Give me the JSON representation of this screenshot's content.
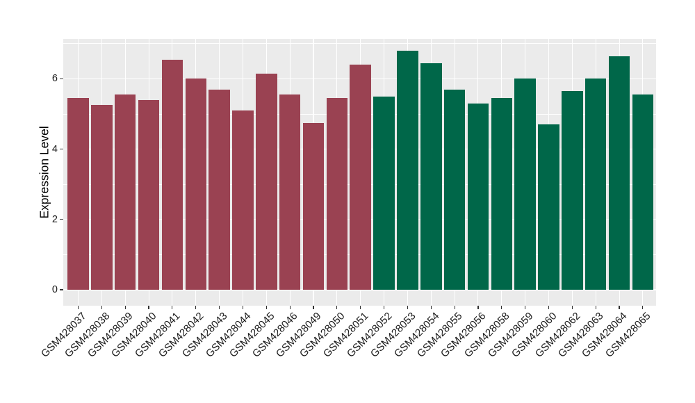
{
  "chart_data": {
    "type": "bar",
    "title": "",
    "ylabel": "Expression Level",
    "xlabel": "",
    "ylim": [
      0,
      7.1
    ],
    "yticks": [
      0,
      2,
      4,
      6
    ],
    "yticks_minor": [
      1,
      3,
      5,
      7
    ],
    "grid": "on",
    "legend_position": "none",
    "panel_bg": "#EBEBEB",
    "grid_color": "#FFFFFF",
    "axis_text_color": "#1a1a1a",
    "bar_colors": {
      "maroon": "#9A4252",
      "green": "#006749"
    },
    "categories": [
      "GSM428037",
      "GSM428038",
      "GSM428039",
      "GSM428040",
      "GSM428041",
      "GSM428042",
      "GSM428043",
      "GSM428044",
      "GSM428045",
      "GSM428046",
      "GSM428049",
      "GSM428050",
      "GSM428051",
      "GSM428052",
      "GSM428053",
      "GSM428054",
      "GSM428055",
      "GSM428056",
      "GSM428058",
      "GSM428059",
      "GSM428060",
      "GSM428062",
      "GSM428063",
      "GSM428064",
      "GSM428065"
    ],
    "bars": [
      {
        "label": "GSM428037",
        "value": 5.45,
        "color": "maroon"
      },
      {
        "label": "GSM428038",
        "value": 5.25,
        "color": "maroon"
      },
      {
        "label": "GSM428039",
        "value": 5.55,
        "color": "maroon"
      },
      {
        "label": "GSM428040",
        "value": 5.4,
        "color": "maroon"
      },
      {
        "label": "GSM428041",
        "value": 6.55,
        "color": "maroon"
      },
      {
        "label": "GSM428042",
        "value": 6.0,
        "color": "maroon"
      },
      {
        "label": "GSM428043",
        "value": 5.7,
        "color": "maroon"
      },
      {
        "label": "GSM428044",
        "value": 5.1,
        "color": "maroon"
      },
      {
        "label": "GSM428045",
        "value": 6.15,
        "color": "maroon"
      },
      {
        "label": "GSM428046",
        "value": 5.55,
        "color": "maroon"
      },
      {
        "label": "GSM428049",
        "value": 4.75,
        "color": "maroon"
      },
      {
        "label": "GSM428050",
        "value": 5.45,
        "color": "maroon"
      },
      {
        "label": "GSM428051",
        "value": 6.4,
        "color": "maroon"
      },
      {
        "label": "GSM428052",
        "value": 5.5,
        "color": "green"
      },
      {
        "label": "GSM428053",
        "value": 6.8,
        "color": "green"
      },
      {
        "label": "GSM428054",
        "value": 6.45,
        "color": "green"
      },
      {
        "label": "GSM428055",
        "value": 5.7,
        "color": "green"
      },
      {
        "label": "GSM428056",
        "value": 5.3,
        "color": "green"
      },
      {
        "label": "GSM428058",
        "value": 5.45,
        "color": "green"
      },
      {
        "label": "GSM428059",
        "value": 6.0,
        "color": "green"
      },
      {
        "label": "GSM428060",
        "value": 4.7,
        "color": "green"
      },
      {
        "label": "GSM428062",
        "value": 5.65,
        "color": "green"
      },
      {
        "label": "GSM428063",
        "value": 6.0,
        "color": "green"
      },
      {
        "label": "GSM428064",
        "value": 6.65,
        "color": "green"
      },
      {
        "label": "GSM428065",
        "value": 5.55,
        "color": "green"
      }
    ]
  }
}
